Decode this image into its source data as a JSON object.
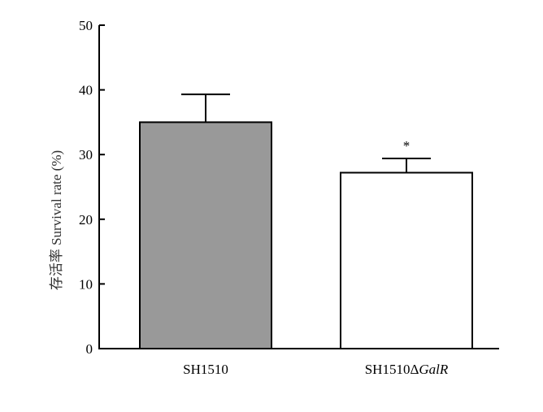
{
  "chart_data": {
    "type": "bar",
    "categories": [
      "SH1510",
      "SH1510ΔGalR"
    ],
    "category_parts": [
      {
        "base": "SH1510",
        "italic": ""
      },
      {
        "base": "SH1510Δ",
        "italic": "GalR"
      }
    ],
    "values": [
      35,
      27.2
    ],
    "errors": [
      4.3,
      2.2
    ],
    "bar_colors": [
      "#999999",
      "#ffffff"
    ],
    "annotations": [
      "",
      "*"
    ],
    "ylabel": "存活率 Survival rate (%)",
    "ylim": [
      0,
      50
    ],
    "yticks": [
      0,
      10,
      20,
      30,
      40,
      50
    ],
    "grid": false
  }
}
